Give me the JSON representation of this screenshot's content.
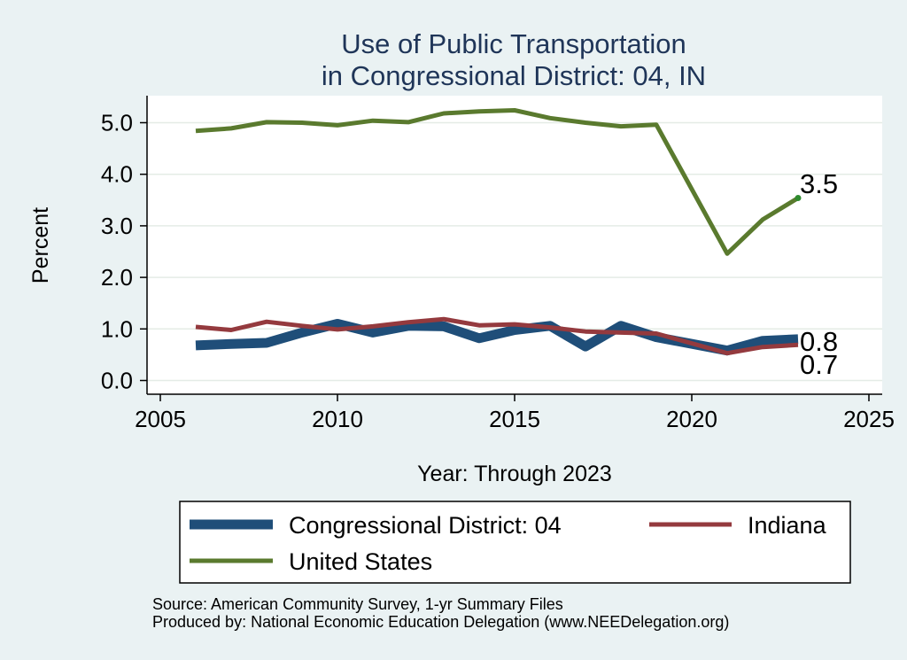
{
  "chart_data": {
    "type": "line",
    "title_lines": [
      "Use of Public Transportation",
      "in Congressional District: 04, IN"
    ],
    "xlabel": "Year: Through 2023",
    "ylabel": "Percent",
    "xlim": [
      2005,
      2025
    ],
    "ylim": [
      0,
      5.5
    ],
    "xticks": [
      2005,
      2010,
      2015,
      2020,
      2025
    ],
    "yticks": [
      0.0,
      1.0,
      2.0,
      3.0,
      4.0,
      5.0
    ],
    "ytick_labels": [
      "0.0",
      "1.0",
      "2.0",
      "3.0",
      "4.0",
      "5.0"
    ],
    "grid": true,
    "legend_position": "bottom",
    "x": [
      2006,
      2007,
      2008,
      2009,
      2010,
      2011,
      2012,
      2013,
      2014,
      2015,
      2016,
      2017,
      2018,
      2019,
      2021,
      2022,
      2023
    ],
    "series": [
      {
        "name": "Congressional District: 04",
        "color": "#1f4e79",
        "width": "thick",
        "values": [
          0.68,
          0.71,
          0.73,
          0.93,
          1.1,
          0.93,
          1.06,
          1.05,
          0.82,
          0.98,
          1.06,
          0.66,
          1.06,
          0.84,
          0.58,
          0.77,
          0.8
        ],
        "end_label": "0.8"
      },
      {
        "name": "Indiana",
        "color": "#943a3e",
        "width": "thin",
        "values": [
          1.04,
          0.98,
          1.14,
          1.06,
          0.99,
          1.05,
          1.13,
          1.19,
          1.07,
          1.09,
          1.03,
          0.95,
          0.93,
          0.91,
          0.53,
          0.65,
          0.69
        ],
        "end_label": "0.7"
      },
      {
        "name": "United States",
        "color": "#5a7a2e",
        "width": "thin",
        "values": [
          4.84,
          4.89,
          5.01,
          5.0,
          4.95,
          5.04,
          5.01,
          5.18,
          5.22,
          5.24,
          5.09,
          5.0,
          4.93,
          4.96,
          2.46,
          3.12,
          3.54
        ],
        "end_label": "3.5"
      }
    ],
    "legend": [
      {
        "label": "Congressional District: 04",
        "color": "#1f4e79",
        "width": "thick"
      },
      {
        "label": "Indiana",
        "color": "#943a3e",
        "width": "thin"
      },
      {
        "label": "United States",
        "color": "#5a7a2e",
        "width": "thin"
      }
    ],
    "notes": [
      "Source: American Community Survey, 1-yr Summary Files",
      "Produced by: National Economic Education Delegation (www.NEEDelegation.org)"
    ]
  },
  "colors": {
    "background": "#eaf2f3",
    "plot_background": "#ffffff",
    "grid": "#e4ece6",
    "title": "#1f3558",
    "text": "#000000"
  }
}
